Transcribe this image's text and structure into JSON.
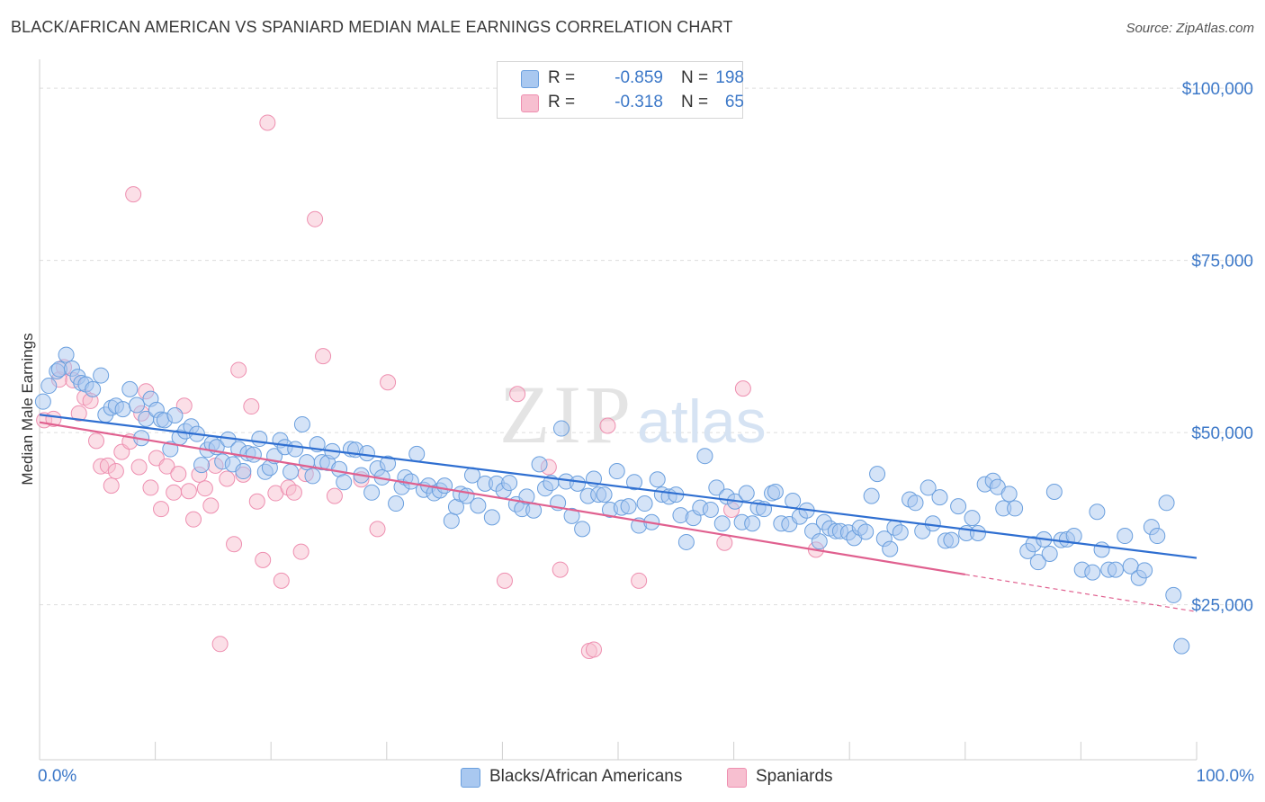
{
  "title": "BLACK/AFRICAN AMERICAN VS SPANIARD MEDIAN MALE EARNINGS CORRELATION CHART",
  "source": "Source: ZipAtlas.com",
  "watermark": {
    "zip": "ZIP",
    "atlas": "atlas"
  },
  "colors": {
    "blue_fill": "#a9c8f0",
    "blue_stroke": "#6a9fde",
    "blue_line": "#2f6fd1",
    "pink_fill": "#f7bfd0",
    "pink_stroke": "#ee8fb0",
    "pink_line": "#e0608f",
    "axis_label": "#3c78c8",
    "grid": "#dddddd"
  },
  "legend": {
    "rows": [
      {
        "r_label": "R =",
        "r_value": "-0.859",
        "n_label": "N =",
        "n_value": "198",
        "color": "blue"
      },
      {
        "r_label": "R =",
        "r_value": "-0.318",
        "n_label": "N =",
        "n_value": "65",
        "color": "pink"
      }
    ]
  },
  "bottom_legend": [
    {
      "label": "Blacks/African Americans",
      "color": "blue"
    },
    {
      "label": "Spaniards",
      "color": "pink"
    }
  ],
  "chart_data": {
    "type": "scatter",
    "title": "BLACK/AFRICAN AMERICAN VS SPANIARD MEDIAN MALE EARNINGS CORRELATION CHART",
    "ylabel": "Median Male Earnings",
    "xlabel": "",
    "xlim": [
      0,
      100
    ],
    "ylim": [
      2500,
      102500
    ],
    "x_tick_labels": [
      "0.0%",
      "100.0%"
    ],
    "y_ticks": [
      25000,
      50000,
      75000,
      100000
    ],
    "y_tick_labels": [
      "$25,000",
      "$50,000",
      "$75,000",
      "$100,000"
    ],
    "grid": true,
    "series": [
      {
        "name": "Blacks/African Americans",
        "color": "blue",
        "trend": {
          "x": [
            0,
            100
          ],
          "y": [
            52600,
            31800
          ]
        },
        "points": [
          [
            0.3,
            54500
          ],
          [
            0.8,
            56800
          ],
          [
            1.5,
            58900
          ],
          [
            1.7,
            59200
          ],
          [
            2.3,
            61300
          ],
          [
            2.8,
            59300
          ],
          [
            3.3,
            58100
          ],
          [
            3.6,
            57200
          ],
          [
            4.0,
            57000
          ],
          [
            4.6,
            56300
          ],
          [
            5.3,
            58300
          ],
          [
            5.7,
            52600
          ],
          [
            6.2,
            53600
          ],
          [
            6.6,
            53900
          ],
          [
            7.2,
            53400
          ],
          [
            7.8,
            56300
          ],
          [
            8.4,
            54000
          ],
          [
            8.8,
            49200
          ],
          [
            9.2,
            52000
          ],
          [
            9.6,
            54900
          ],
          [
            10.1,
            53300
          ],
          [
            10.5,
            51900
          ],
          [
            10.8,
            51800
          ],
          [
            11.3,
            47600
          ],
          [
            11.7,
            52500
          ],
          [
            12.1,
            49300
          ],
          [
            12.6,
            50200
          ],
          [
            13.1,
            50900
          ],
          [
            13.6,
            49800
          ],
          [
            14.0,
            45300
          ],
          [
            14.5,
            47500
          ],
          [
            14.9,
            48400
          ],
          [
            15.3,
            47900
          ],
          [
            15.8,
            45800
          ],
          [
            16.3,
            49000
          ],
          [
            16.7,
            45400
          ],
          [
            17.2,
            47600
          ],
          [
            17.6,
            44400
          ],
          [
            18.0,
            47000
          ],
          [
            18.5,
            46800
          ],
          [
            19.0,
            49100
          ],
          [
            19.5,
            44300
          ],
          [
            19.9,
            44900
          ],
          [
            20.3,
            46600
          ],
          [
            20.8,
            48900
          ],
          [
            21.2,
            47900
          ],
          [
            21.7,
            44300
          ],
          [
            22.1,
            47600
          ],
          [
            22.7,
            51200
          ],
          [
            23.1,
            45700
          ],
          [
            23.6,
            43700
          ],
          [
            24.0,
            48300
          ],
          [
            24.4,
            45700
          ],
          [
            24.9,
            45600
          ],
          [
            25.3,
            47300
          ],
          [
            25.9,
            44700
          ],
          [
            26.3,
            42800
          ],
          [
            26.9,
            47600
          ],
          [
            27.3,
            47500
          ],
          [
            27.8,
            43800
          ],
          [
            28.3,
            47000
          ],
          [
            28.7,
            41300
          ],
          [
            29.2,
            44800
          ],
          [
            29.6,
            43500
          ],
          [
            30.1,
            45500
          ],
          [
            30.8,
            39700
          ],
          [
            31.3,
            42100
          ],
          [
            31.6,
            43500
          ],
          [
            32.1,
            42900
          ],
          [
            32.6,
            46900
          ],
          [
            33.2,
            41700
          ],
          [
            33.6,
            42300
          ],
          [
            34.1,
            41200
          ],
          [
            34.6,
            41600
          ],
          [
            35.0,
            42300
          ],
          [
            35.6,
            37200
          ],
          [
            36.0,
            39200
          ],
          [
            36.4,
            41100
          ],
          [
            36.9,
            40800
          ],
          [
            37.4,
            43800
          ],
          [
            37.9,
            39400
          ],
          [
            38.5,
            42600
          ],
          [
            39.1,
            37700
          ],
          [
            39.5,
            42600
          ],
          [
            40.1,
            41600
          ],
          [
            40.6,
            42700
          ],
          [
            41.2,
            39600
          ],
          [
            41.7,
            38900
          ],
          [
            42.1,
            40700
          ],
          [
            42.7,
            38700
          ],
          [
            43.2,
            45400
          ],
          [
            43.7,
            41900
          ],
          [
            44.2,
            42700
          ],
          [
            44.8,
            39800
          ],
          [
            45.1,
            50600
          ],
          [
            45.5,
            42900
          ],
          [
            46.0,
            37900
          ],
          [
            46.5,
            42600
          ],
          [
            46.9,
            36000
          ],
          [
            47.4,
            40800
          ],
          [
            47.9,
            43300
          ],
          [
            48.3,
            41000
          ],
          [
            48.8,
            41000
          ],
          [
            49.3,
            38800
          ],
          [
            49.9,
            44400
          ],
          [
            50.3,
            39100
          ],
          [
            50.9,
            39300
          ],
          [
            51.4,
            42800
          ],
          [
            51.8,
            36500
          ],
          [
            52.3,
            39700
          ],
          [
            52.9,
            37000
          ],
          [
            53.4,
            43200
          ],
          [
            53.8,
            41000
          ],
          [
            54.4,
            40700
          ],
          [
            55.0,
            41000
          ],
          [
            55.4,
            38000
          ],
          [
            55.9,
            34100
          ],
          [
            56.5,
            37600
          ],
          [
            57.1,
            39100
          ],
          [
            57.5,
            46600
          ],
          [
            58.0,
            38800
          ],
          [
            58.5,
            42000
          ],
          [
            59.0,
            36800
          ],
          [
            59.4,
            40700
          ],
          [
            60.1,
            40000
          ],
          [
            60.7,
            37000
          ],
          [
            61.1,
            41200
          ],
          [
            61.6,
            36800
          ],
          [
            62.1,
            39100
          ],
          [
            62.6,
            38900
          ],
          [
            63.3,
            41200
          ],
          [
            63.6,
            41400
          ],
          [
            64.1,
            36800
          ],
          [
            64.8,
            36700
          ],
          [
            65.1,
            40100
          ],
          [
            65.7,
            37800
          ],
          [
            66.3,
            38700
          ],
          [
            66.8,
            35700
          ],
          [
            67.4,
            34200
          ],
          [
            67.8,
            37000
          ],
          [
            68.3,
            36100
          ],
          [
            68.8,
            35700
          ],
          [
            69.2,
            35700
          ],
          [
            69.9,
            35500
          ],
          [
            70.4,
            34700
          ],
          [
            70.9,
            36200
          ],
          [
            71.4,
            35600
          ],
          [
            71.9,
            40800
          ],
          [
            72.4,
            44000
          ],
          [
            73.0,
            34600
          ],
          [
            73.5,
            33100
          ],
          [
            73.9,
            36200
          ],
          [
            74.4,
            35500
          ],
          [
            75.2,
            40300
          ],
          [
            75.7,
            39800
          ],
          [
            76.3,
            35700
          ],
          [
            76.8,
            42000
          ],
          [
            77.2,
            36800
          ],
          [
            77.8,
            40600
          ],
          [
            78.3,
            34300
          ],
          [
            78.8,
            34400
          ],
          [
            79.4,
            39300
          ],
          [
            80.1,
            35400
          ],
          [
            80.6,
            37600
          ],
          [
            81.1,
            35400
          ],
          [
            81.7,
            42500
          ],
          [
            82.4,
            43000
          ],
          [
            82.8,
            42100
          ],
          [
            83.3,
            39000
          ],
          [
            83.8,
            41100
          ],
          [
            84.3,
            39000
          ],
          [
            85.4,
            32800
          ],
          [
            85.9,
            33800
          ],
          [
            86.3,
            31200
          ],
          [
            86.8,
            34500
          ],
          [
            87.3,
            32400
          ],
          [
            87.7,
            41400
          ],
          [
            88.3,
            34400
          ],
          [
            88.8,
            34500
          ],
          [
            89.4,
            35000
          ],
          [
            90.1,
            30100
          ],
          [
            91.0,
            29700
          ],
          [
            91.4,
            38500
          ],
          [
            91.8,
            33000
          ],
          [
            92.4,
            30100
          ],
          [
            93.0,
            30100
          ],
          [
            93.8,
            35000
          ],
          [
            94.3,
            30600
          ],
          [
            95.0,
            28900
          ],
          [
            95.5,
            30000
          ],
          [
            96.1,
            36300
          ],
          [
            96.6,
            35000
          ],
          [
            97.4,
            39800
          ],
          [
            98.0,
            26400
          ],
          [
            98.7,
            19000
          ]
        ]
      },
      {
        "name": "Spaniards",
        "color": "pink",
        "trend": {
          "x": [
            0,
            80
          ],
          "y": [
            51500,
            29400
          ]
        },
        "trend_dashed": {
          "x": [
            80,
            100
          ],
          "y": [
            29400,
            24000
          ]
        },
        "points": [
          [
            0.4,
            51800
          ],
          [
            1.2,
            52000
          ],
          [
            1.7,
            57700
          ],
          [
            2.1,
            59500
          ],
          [
            2.9,
            57600
          ],
          [
            3.4,
            52800
          ],
          [
            3.9,
            55100
          ],
          [
            4.4,
            54600
          ],
          [
            4.9,
            48800
          ],
          [
            5.3,
            45100
          ],
          [
            5.9,
            45200
          ],
          [
            6.2,
            42300
          ],
          [
            6.6,
            44400
          ],
          [
            7.1,
            47200
          ],
          [
            7.8,
            48700
          ],
          [
            8.1,
            84600
          ],
          [
            8.6,
            45000
          ],
          [
            8.8,
            52800
          ],
          [
            9.2,
            56000
          ],
          [
            9.6,
            42000
          ],
          [
            10.1,
            46300
          ],
          [
            10.5,
            38900
          ],
          [
            11.0,
            45100
          ],
          [
            11.6,
            41300
          ],
          [
            12.0,
            44000
          ],
          [
            12.5,
            53900
          ],
          [
            12.9,
            41500
          ],
          [
            13.3,
            37400
          ],
          [
            13.8,
            43900
          ],
          [
            14.3,
            41900
          ],
          [
            14.8,
            39400
          ],
          [
            15.2,
            45200
          ],
          [
            15.6,
            19300
          ],
          [
            16.2,
            43300
          ],
          [
            16.8,
            33800
          ],
          [
            17.2,
            59100
          ],
          [
            17.6,
            43900
          ],
          [
            18.3,
            53800
          ],
          [
            18.8,
            40000
          ],
          [
            19.3,
            31500
          ],
          [
            19.7,
            95000
          ],
          [
            20.4,
            41200
          ],
          [
            20.9,
            28500
          ],
          [
            21.5,
            42000
          ],
          [
            22.0,
            41300
          ],
          [
            22.6,
            32700
          ],
          [
            23.0,
            44000
          ],
          [
            23.8,
            81000
          ],
          [
            24.5,
            61100
          ],
          [
            25.5,
            40800
          ],
          [
            27.8,
            43200
          ],
          [
            29.2,
            36000
          ],
          [
            30.1,
            57300
          ],
          [
            40.2,
            28500
          ],
          [
            41.3,
            55600
          ],
          [
            44.0,
            45000
          ],
          [
            45.0,
            30100
          ],
          [
            47.5,
            18300
          ],
          [
            47.9,
            18500
          ],
          [
            49.1,
            51000
          ],
          [
            51.8,
            28500
          ],
          [
            59.2,
            34000
          ],
          [
            59.8,
            38800
          ],
          [
            60.8,
            56400
          ],
          [
            67.1,
            33000
          ]
        ]
      }
    ]
  }
}
